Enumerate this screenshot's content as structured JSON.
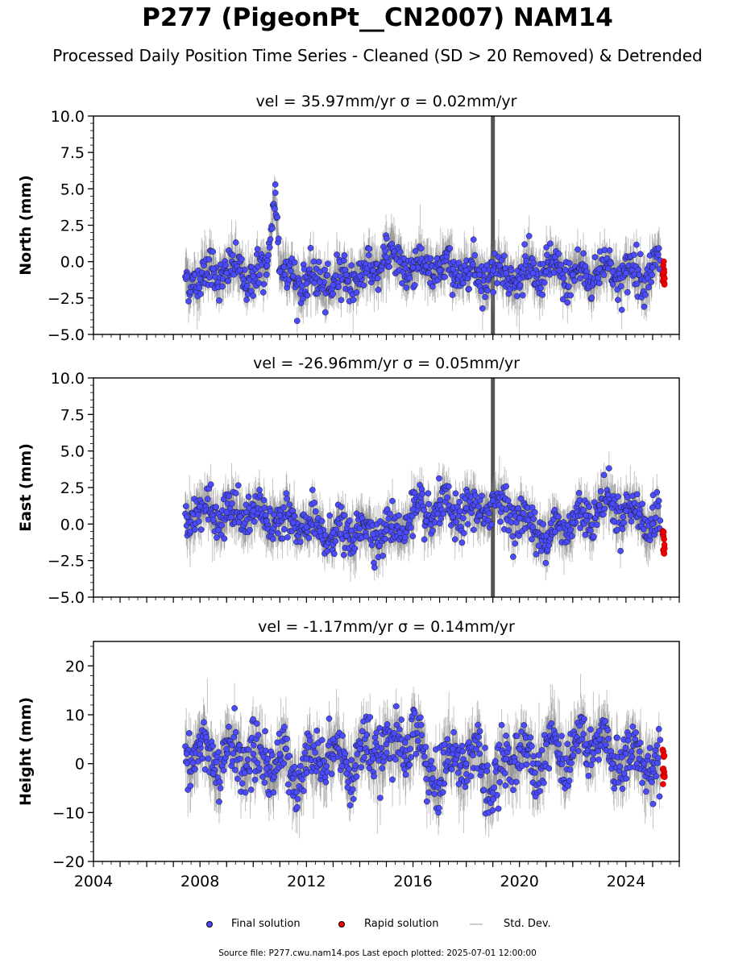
{
  "title": "P277 (PigeonPt__CN2007) NAM14",
  "subtitle": "Processed Daily Position Time Series - Cleaned (SD > 20 Removed) & Detrended",
  "footer": "Source file: P277.cwu.nam14.pos  Last epoch plotted: 2025-07-01 12:00:00",
  "legend": {
    "final": "Final solution",
    "rapid": "Rapid solution",
    "stddev": "Std. Dev."
  },
  "colors": {
    "final": "#4a4aff",
    "rapid": "#ee0000",
    "errorbar": "#7a7a7a",
    "event_line": "#555555"
  },
  "chart_data": [
    {
      "type": "scatter",
      "name": "north",
      "panel_title": "vel = 35.97mm/yr   σ = 0.02mm/yr",
      "ylabel": "North (mm)",
      "ylim": [
        -5,
        10
      ],
      "yticks": [
        "−5.0",
        "−2.5",
        "0.0",
        "2.5",
        "5.0",
        "7.5",
        "10.0"
      ],
      "ytick_values": [
        -5,
        -2.5,
        0,
        2.5,
        5,
        7.5,
        10
      ],
      "xlim": [
        2004,
        2026
      ],
      "series": [
        {
          "name": "Final solution",
          "x": [
            2007.5,
            2008.0,
            2008.5,
            2009.0,
            2009.5,
            2010.0,
            2010.5,
            2010.83,
            2011.0,
            2011.5,
            2012.0,
            2012.5,
            2013.0,
            2013.5,
            2014.0,
            2014.5,
            2015.0,
            2015.5,
            2016.0,
            2016.5,
            2017.0,
            2017.5,
            2018.0,
            2018.5,
            2019.0,
            2019.5,
            2020.0,
            2020.5,
            2021.0,
            2021.5,
            2022.0,
            2022.5,
            2023.0,
            2023.5,
            2024.0,
            2024.5,
            2025.0
          ],
          "y": [
            -1.0,
            -1.2,
            -0.5,
            -0.8,
            -0.6,
            -1.0,
            -0.9,
            5.3,
            -0.7,
            -1.0,
            -1.5,
            -1.4,
            -1.6,
            -0.9,
            -1.0,
            -0.6,
            0.3,
            0.0,
            -0.4,
            -0.3,
            -0.6,
            -0.5,
            -0.6,
            -0.9,
            -0.6,
            -0.8,
            -1.2,
            -0.8,
            -0.7,
            -0.6,
            -0.9,
            -1.0,
            -0.5,
            -0.7,
            -0.8,
            -0.9,
            -0.4
          ]
        },
        {
          "name": "Rapid solution",
          "x": [
            2025.38,
            2025.45
          ],
          "y": [
            -0.5,
            -1.0
          ]
        }
      ],
      "event_x": 2019.0
    },
    {
      "type": "scatter",
      "name": "east",
      "panel_title": "vel = -26.96mm/yr   σ = 0.05mm/yr",
      "ylabel": "East (mm)",
      "ylim": [
        -5,
        10
      ],
      "yticks": [
        "−5.0",
        "−2.5",
        "0.0",
        "2.5",
        "5.0",
        "7.5",
        "10.0"
      ],
      "ytick_values": [
        -5,
        -2.5,
        0,
        2.5,
        5,
        7.5,
        10
      ],
      "xlim": [
        2004,
        2026
      ],
      "series": [
        {
          "name": "Final solution",
          "x": [
            2007.5,
            2008.0,
            2008.5,
            2009.0,
            2009.5,
            2010.0,
            2010.5,
            2011.0,
            2011.5,
            2012.0,
            2012.5,
            2013.0,
            2013.5,
            2014.0,
            2014.5,
            2015.0,
            2015.5,
            2016.0,
            2016.5,
            2017.0,
            2017.5,
            2018.0,
            2018.5,
            2019.0,
            2019.5,
            2020.0,
            2020.5,
            2021.0,
            2021.5,
            2022.0,
            2022.5,
            2023.0,
            2023.5,
            2024.0,
            2024.5,
            2025.0
          ],
          "y": [
            0.5,
            1.2,
            0.3,
            0.8,
            0.5,
            0.9,
            0.2,
            0.6,
            0.1,
            -0.2,
            -0.5,
            -0.6,
            -0.8,
            -0.3,
            -0.7,
            -0.4,
            -0.6,
            1.0,
            0.2,
            1.3,
            0.5,
            1.1,
            0.6,
            1.6,
            1.0,
            0.4,
            -0.2,
            -0.8,
            -0.3,
            0.1,
            0.6,
            1.3,
            1.4,
            0.9,
            0.7,
            0.0
          ]
        },
        {
          "name": "Rapid solution",
          "x": [
            2025.38,
            2025.45
          ],
          "y": [
            -1.0,
            -1.4
          ]
        }
      ],
      "event_x": 2019.0
    },
    {
      "type": "scatter",
      "name": "height",
      "panel_title": "vel = -1.17mm/yr   σ = 0.14mm/yr",
      "ylabel": "Height (mm)",
      "ylim": [
        -20,
        25
      ],
      "yticks": [
        "−20",
        "−10",
        "0",
        "10",
        "20"
      ],
      "ytick_values": [
        -20,
        -10,
        0,
        10,
        20
      ],
      "xlim": [
        2004,
        2026
      ],
      "xticks": [
        "2004",
        "2008",
        "2012",
        "2016",
        "2020",
        "2024"
      ],
      "xtick_values": [
        2004,
        2008,
        2012,
        2016,
        2020,
        2024
      ],
      "series": [
        {
          "name": "Final solution",
          "x": [
            2007.5,
            2008.0,
            2008.5,
            2009.0,
            2009.5,
            2010.0,
            2010.5,
            2011.0,
            2011.5,
            2012.0,
            2012.5,
            2013.0,
            2013.5,
            2014.0,
            2014.5,
            2015.0,
            2015.5,
            2016.0,
            2016.5,
            2017.0,
            2017.5,
            2018.0,
            2018.5,
            2019.0,
            2019.5,
            2020.0,
            2020.5,
            2021.0,
            2021.5,
            2022.0,
            2022.5,
            2023.0,
            2023.5,
            2024.0,
            2024.5,
            2025.0
          ],
          "y": [
            2,
            4,
            -2,
            3,
            1,
            2,
            -1,
            2,
            -3,
            1,
            0,
            5,
            -2,
            3,
            1,
            4,
            2,
            6,
            0,
            -4,
            3,
            0,
            2,
            -6,
            1,
            3,
            0,
            4,
            2,
            3,
            4,
            5,
            0,
            2,
            1,
            -1
          ]
        },
        {
          "name": "Rapid solution",
          "x": [
            2025.38,
            2025.45
          ],
          "y": [
            0,
            -2
          ]
        }
      ],
      "errorbar_sd": 4
    }
  ]
}
